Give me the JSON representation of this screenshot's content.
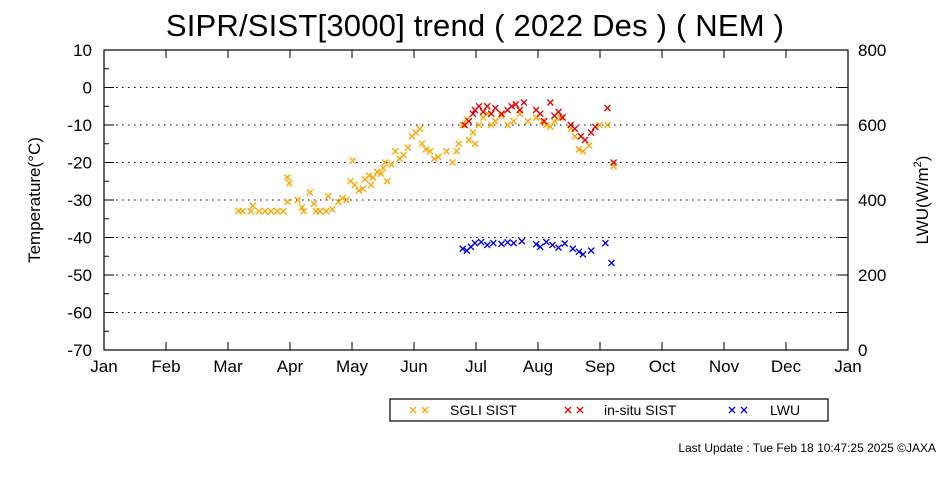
{
  "title": "SIPR/SIST[3000] trend ( 2022 Des ) ( NEM )",
  "footer": "Last Update : Tue Feb 18 10:47:25 2025  ©JAXA",
  "chart_data": {
    "type": "scatter",
    "title": "SIPR/SIST[3000] trend ( 2022 Des ) ( NEM )",
    "xlabel": "",
    "ylabel": "Temperature(°C)",
    "y2label": "LWU(W/m²)",
    "x_ticks": [
      "Jan",
      "Feb",
      "Mar",
      "Apr",
      "May",
      "Jun",
      "Jul",
      "Aug",
      "Sep",
      "Oct",
      "Nov",
      "Dec",
      "Jan"
    ],
    "ylim": [
      -70,
      10
    ],
    "y_ticks": [
      10,
      0,
      -10,
      -20,
      -30,
      -40,
      -50,
      -60,
      -70
    ],
    "y2lim": [
      0,
      800
    ],
    "y2_ticks": [
      800,
      600,
      400,
      200,
      0
    ],
    "grid": "dotted horizontal",
    "legend_position": "bottom",
    "series": [
      {
        "name": "SGLI SIST",
        "color": "#ffa500",
        "axis": "left",
        "points": [
          [
            "2022-03-08",
            -33
          ],
          [
            "2022-03-10",
            -33
          ],
          [
            "2022-03-14",
            -33
          ],
          [
            "2022-03-15",
            -31.5
          ],
          [
            "2022-03-18",
            -33
          ],
          [
            "2022-03-21",
            -33
          ],
          [
            "2022-03-24",
            -33
          ],
          [
            "2022-03-27",
            -33
          ],
          [
            "2022-03-30",
            -33
          ],
          [
            "2022-04-01",
            -30.5
          ],
          [
            "2022-04-01",
            -24
          ],
          [
            "2022-04-02",
            -25.5
          ],
          [
            "2022-04-06",
            -30
          ],
          [
            "2022-04-08",
            -32
          ],
          [
            "2022-04-09",
            -33
          ],
          [
            "2022-04-12",
            -28
          ],
          [
            "2022-04-14",
            -31
          ],
          [
            "2022-04-15",
            -33
          ],
          [
            "2022-04-17",
            -33
          ],
          [
            "2022-04-20",
            -33
          ],
          [
            "2022-04-21",
            -29
          ],
          [
            "2022-04-23",
            -32.5
          ],
          [
            "2022-04-26",
            -30.5
          ],
          [
            "2022-04-28",
            -29.5
          ],
          [
            "2022-04-30",
            -30
          ],
          [
            "2022-05-02",
            -25
          ],
          [
            "2022-05-03",
            -19.5
          ],
          [
            "2022-05-04",
            -26
          ],
          [
            "2022-05-06",
            -27.5
          ],
          [
            "2022-05-08",
            -27
          ],
          [
            "2022-05-09",
            -24.5
          ],
          [
            "2022-05-11",
            -23.5
          ],
          [
            "2022-05-12",
            -26
          ],
          [
            "2022-05-13",
            -24
          ],
          [
            "2022-05-15",
            -22.5
          ],
          [
            "2022-05-17",
            -23
          ],
          [
            "2022-05-18",
            -21.5
          ],
          [
            "2022-05-19",
            -20
          ],
          [
            "2022-05-20",
            -25
          ],
          [
            "2022-05-22",
            -20.5
          ],
          [
            "2022-05-24",
            -17
          ],
          [
            "2022-05-26",
            -19
          ],
          [
            "2022-05-28",
            -18
          ],
          [
            "2022-05-30",
            -16
          ],
          [
            "2022-06-01",
            -13
          ],
          [
            "2022-06-03",
            -12
          ],
          [
            "2022-06-05",
            -11
          ],
          [
            "2022-06-06",
            -15
          ],
          [
            "2022-06-08",
            -16.5
          ],
          [
            "2022-06-10",
            -17
          ],
          [
            "2022-06-12",
            -19
          ],
          [
            "2022-06-14",
            -18.5
          ],
          [
            "2022-06-18",
            -17
          ],
          [
            "2022-06-21",
            -20
          ],
          [
            "2022-06-23",
            -17
          ],
          [
            "2022-06-24",
            -15
          ],
          [
            "2022-06-26",
            -10
          ],
          [
            "2022-06-28",
            -8.5
          ],
          [
            "2022-06-29",
            -14
          ],
          [
            "2022-07-01",
            -12
          ],
          [
            "2022-07-02",
            -15
          ],
          [
            "2022-07-04",
            -10
          ],
          [
            "2022-07-06",
            -8
          ],
          [
            "2022-07-08",
            -7
          ],
          [
            "2022-07-10",
            -10
          ],
          [
            "2022-07-12",
            -9
          ],
          [
            "2022-07-15",
            -7.5
          ],
          [
            "2022-07-18",
            -10
          ],
          [
            "2022-07-21",
            -9
          ],
          [
            "2022-07-24",
            -7
          ],
          [
            "2022-07-28",
            -9
          ],
          [
            "2022-08-01",
            -8
          ],
          [
            "2022-08-04",
            -9
          ],
          [
            "2022-08-06",
            -10
          ],
          [
            "2022-08-08",
            -10.5
          ],
          [
            "2022-08-10",
            -9
          ],
          [
            "2022-08-13",
            -8
          ],
          [
            "2022-08-18",
            -11
          ],
          [
            "2022-08-20",
            -13
          ],
          [
            "2022-08-22",
            -16.5
          ],
          [
            "2022-08-24",
            -17
          ],
          [
            "2022-08-27",
            -15.5
          ],
          [
            "2022-09-01",
            -10
          ],
          [
            "2022-09-05",
            -10
          ],
          [
            "2022-09-08",
            -21
          ]
        ]
      },
      {
        "name": "in-situ SIST",
        "color": "#e00000",
        "axis": "left",
        "points": [
          [
            "2022-06-27",
            -10
          ],
          [
            "2022-06-29",
            -9
          ],
          [
            "2022-07-01",
            -7
          ],
          [
            "2022-07-02",
            -6
          ],
          [
            "2022-07-04",
            -5
          ],
          [
            "2022-07-06",
            -6.5
          ],
          [
            "2022-07-08",
            -5
          ],
          [
            "2022-07-10",
            -7
          ],
          [
            "2022-07-12",
            -5.5
          ],
          [
            "2022-07-15",
            -7
          ],
          [
            "2022-07-18",
            -6
          ],
          [
            "2022-07-20",
            -5
          ],
          [
            "2022-07-22",
            -4.5
          ],
          [
            "2022-07-24",
            -6
          ],
          [
            "2022-07-26",
            -4
          ],
          [
            "2022-08-01",
            -6
          ],
          [
            "2022-08-03",
            -7
          ],
          [
            "2022-08-05",
            -9
          ],
          [
            "2022-08-08",
            -4
          ],
          [
            "2022-08-10",
            -7.5
          ],
          [
            "2022-08-12",
            -6.5
          ],
          [
            "2022-08-14",
            -8
          ],
          [
            "2022-08-18",
            -10
          ],
          [
            "2022-08-20",
            -11
          ],
          [
            "2022-08-23",
            -13
          ],
          [
            "2022-08-25",
            -14
          ],
          [
            "2022-08-28",
            -12
          ],
          [
            "2022-08-30",
            -10.5
          ],
          [
            "2022-09-05",
            -5.5
          ],
          [
            "2022-09-08",
            -20
          ]
        ]
      },
      {
        "name": "LWU",
        "color": "#0000e0",
        "axis": "right",
        "points": [
          [
            "2022-06-26",
            270
          ],
          [
            "2022-06-28",
            265
          ],
          [
            "2022-06-30",
            275
          ],
          [
            "2022-07-02",
            285
          ],
          [
            "2022-07-05",
            288
          ],
          [
            "2022-07-08",
            280
          ],
          [
            "2022-07-11",
            285
          ],
          [
            "2022-07-15",
            283
          ],
          [
            "2022-07-18",
            287
          ],
          [
            "2022-07-21",
            285
          ],
          [
            "2022-07-25",
            290
          ],
          [
            "2022-08-01",
            282
          ],
          [
            "2022-08-03",
            275
          ],
          [
            "2022-08-06",
            288
          ],
          [
            "2022-08-09",
            280
          ],
          [
            "2022-08-12",
            273
          ],
          [
            "2022-08-15",
            284
          ],
          [
            "2022-08-19",
            270
          ],
          [
            "2022-08-22",
            262
          ],
          [
            "2022-08-24",
            255
          ],
          [
            "2022-08-28",
            265
          ],
          [
            "2022-09-04",
            285
          ],
          [
            "2022-09-07",
            232
          ]
        ]
      }
    ]
  }
}
